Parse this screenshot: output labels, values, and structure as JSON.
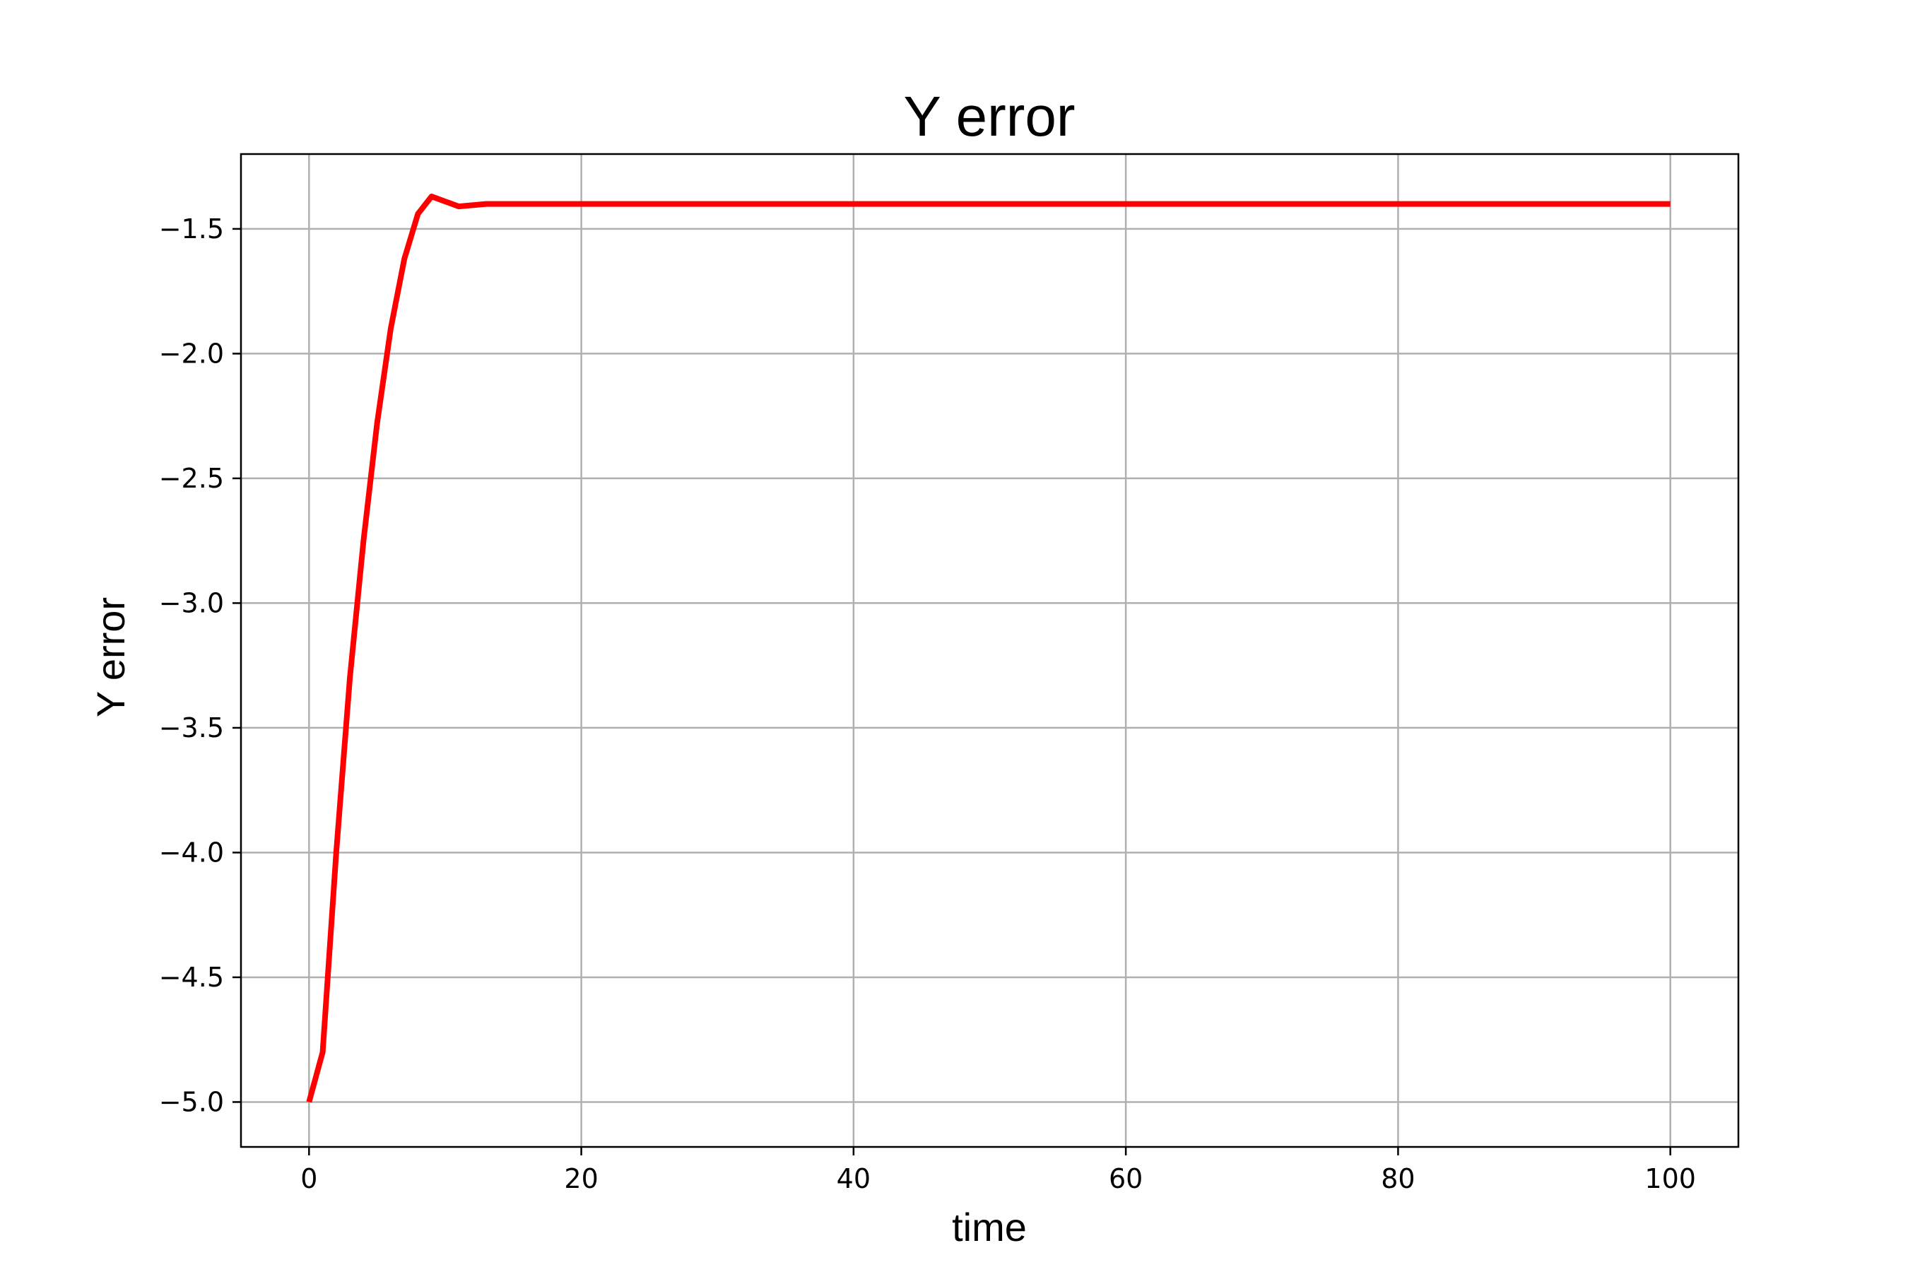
{
  "chart_data": {
    "type": "line",
    "title": "Y error",
    "xlabel": "time",
    "ylabel": "Y error",
    "xlim": [
      -5,
      105
    ],
    "ylim": [
      -5.18,
      -1.2
    ],
    "xticks": [
      0,
      20,
      40,
      60,
      80,
      100
    ],
    "xtick_labels": [
      "0",
      "20",
      "40",
      "60",
      "80",
      "100"
    ],
    "yticks": [
      -5.0,
      -4.5,
      -4.0,
      -3.5,
      -3.0,
      -2.5,
      -2.0,
      -1.5
    ],
    "ytick_labels": [
      "−5.0",
      "−4.5",
      "−4.0",
      "−3.5",
      "−3.0",
      "−2.5",
      "−2.0",
      "−1.5"
    ],
    "grid": true,
    "series": [
      {
        "color": "#ff0000",
        "x": [
          0,
          1,
          2,
          3,
          4,
          5,
          6,
          7,
          8,
          9,
          10,
          11,
          12,
          13,
          14,
          15,
          20,
          30,
          40,
          50,
          60,
          70,
          80,
          90,
          100
        ],
        "y": [
          -5.0,
          -4.8,
          -4.0,
          -3.3,
          -2.75,
          -2.28,
          -1.9,
          -1.62,
          -1.44,
          -1.37,
          -1.39,
          -1.41,
          -1.405,
          -1.4,
          -1.4,
          -1.4,
          -1.4,
          -1.4,
          -1.4,
          -1.4,
          -1.4,
          -1.4,
          -1.4,
          -1.4,
          -1.4
        ]
      }
    ]
  }
}
